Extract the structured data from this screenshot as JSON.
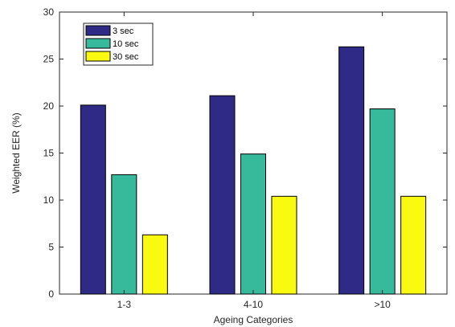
{
  "chart_data": {
    "type": "bar",
    "categories": [
      "1-3",
      "4-10",
      ">10"
    ],
    "series": [
      {
        "name": "3 sec",
        "color": "#2e2a85",
        "values": [
          20.1,
          21.1,
          26.3
        ]
      },
      {
        "name": "10 sec",
        "color": "#37b99c",
        "values": [
          12.7,
          14.9,
          19.7
        ]
      },
      {
        "name": "30 sec",
        "color": "#f9fa0f",
        "values": [
          6.3,
          10.4,
          10.4
        ]
      }
    ],
    "xlabel": "Ageing Categories",
    "ylabel": "Weighted EER (%)",
    "ylim": [
      0,
      30
    ],
    "yticks": [
      "0",
      "5",
      "10",
      "15",
      "20",
      "25",
      "30"
    ],
    "grid": false,
    "legend_position": "top-left"
  }
}
